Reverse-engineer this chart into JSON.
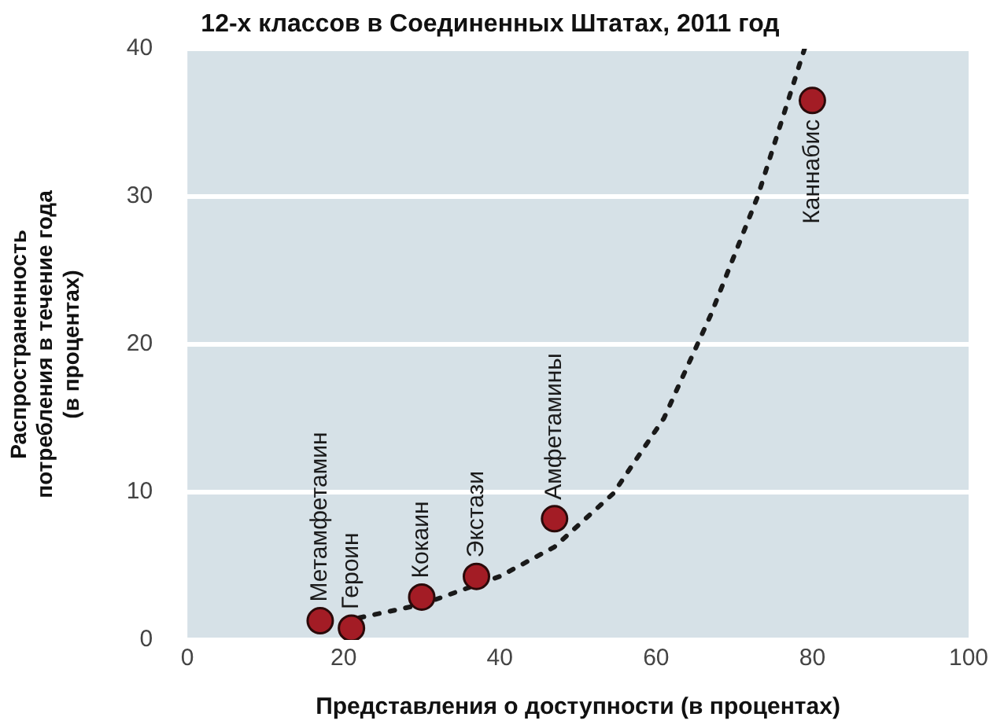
{
  "chart_data": {
    "type": "scatter",
    "title": "12-х классов в Соединенных Штатах, 2011 год",
    "xlabel": "Представления о доступности (в процентах)",
    "ylabel": "Распространенность потребления в течение года (в процентах)",
    "xlim": [
      0,
      100
    ],
    "xticks": [
      0,
      20,
      40,
      60,
      80,
      100
    ],
    "ylim": [
      0,
      40
    ],
    "yticks": [
      0,
      10,
      20,
      30,
      40
    ],
    "grid": "y",
    "legend": false,
    "marker": "circle",
    "series": [
      {
        "color": "#a31c25",
        "x": [
          17,
          21,
          30,
          37,
          47,
          80
        ],
        "values": [
          1.3,
          0.8,
          2.9,
          4.3,
          8.2,
          36.5
        ]
      },
      {
        "type": "line",
        "color": "#1a1a1a",
        "line_style": "dotted",
        "marker": "none",
        "x": [
          22,
          30,
          40,
          47,
          54.5,
          61,
          67,
          73,
          79
        ],
        "values": [
          1.5,
          2.4,
          4.3,
          6.3,
          9.9,
          15,
          22,
          30,
          40
        ]
      }
    ],
    "annotations": [
      {
        "text": "Метамфетамин",
        "x": 17,
        "y": 1.3
      },
      {
        "text": "Героин",
        "x": 21,
        "y": 0.8
      },
      {
        "text": "Кокаин",
        "x": 30,
        "y": 2.9
      },
      {
        "text": "Экстази",
        "x": 37,
        "y": 4.3
      },
      {
        "text": "Амфетамины",
        "x": 47,
        "y": 8.2
      },
      {
        "text": "Каннабис",
        "x": 80,
        "y": 36.5
      }
    ]
  }
}
